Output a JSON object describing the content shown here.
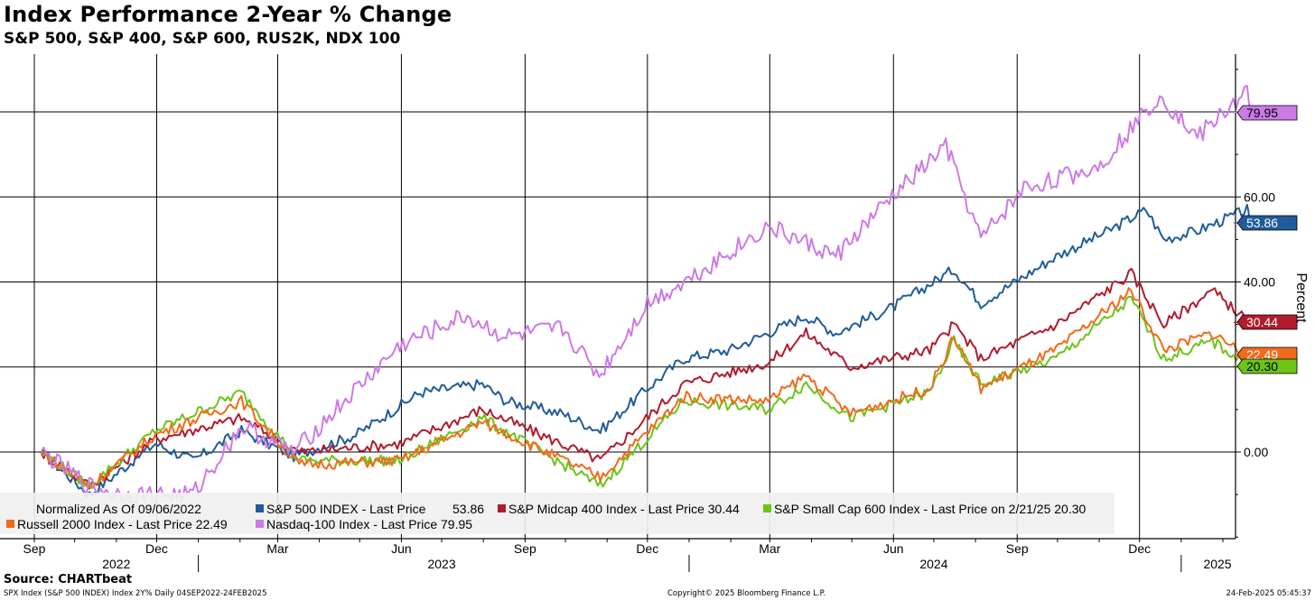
{
  "title": "Index Performance 2-Year % Change",
  "subtitle": "S&P 500, S&P 400, S&P 600, RUS2K, NDX 100",
  "source": "Source: CHARTbeat",
  "footer": {
    "left": "SPX Index (S&P 500 INDEX) Index 2Y%  Daily 04SEP2022-24FEB2025",
    "center": "Copyright© 2025 Bloomberg Finance L.P.",
    "right": "24-Feb-2025 05:45:37"
  },
  "chart_data": {
    "type": "line",
    "ylabel": "Percent",
    "ylim": [
      -20,
      95
    ],
    "yticks": [
      0,
      40,
      60
    ],
    "ytick_labels": [
      "0.00",
      "40.00",
      "60.00"
    ],
    "gridlines_y": [
      0,
      20,
      40,
      60,
      80
    ],
    "grid": true,
    "x_months": [
      "Sep",
      "Dec",
      "Mar",
      "Jun",
      "Sep",
      "Dec",
      "Mar",
      "Jun",
      "Sep",
      "Dec"
    ],
    "x_years": [
      "2022",
      "2023",
      "2024",
      "2025"
    ],
    "legend_note": "Normalized As Of 09/06/2022",
    "series": [
      {
        "name": "S&P 500 INDEX - Last Price",
        "legend_value": "53.86",
        "last_label": "53.86",
        "color": "#1f5c99",
        "x": [
          "2022-09-06",
          "2022-10-12",
          "2022-11-30",
          "2022-12-28",
          "2023-02-02",
          "2023-03-13",
          "2023-04-28",
          "2023-06-15",
          "2023-07-31",
          "2023-08-18",
          "2023-09-29",
          "2023-10-27",
          "2023-12-01",
          "2023-12-28",
          "2024-01-31",
          "2024-03-28",
          "2024-04-19",
          "2024-05-31",
          "2024-07-16",
          "2024-08-05",
          "2024-09-30",
          "2024-11-08",
          "2024-12-06",
          "2024-12-19",
          "2025-01-13",
          "2025-02-19",
          "2025-02-21"
        ],
        "y": [
          0,
          -10,
          2,
          -2,
          5,
          -1,
          4,
          14,
          16,
          12,
          9,
          5,
          15,
          22,
          24,
          32,
          28,
          34,
          43,
          35,
          46,
          52,
          57,
          50,
          52,
          57,
          53.86
        ]
      },
      {
        "name": "S&P Midcap 400 Index - Last Price",
        "legend_value": "30.44",
        "last_label": "30.44",
        "color": "#b01c2e",
        "x": [
          "2022-09-06",
          "2022-10-12",
          "2022-11-30",
          "2023-02-02",
          "2023-03-17",
          "2023-05-31",
          "2023-07-31",
          "2023-10-27",
          "2023-12-28",
          "2024-02-29",
          "2024-03-28",
          "2024-04-30",
          "2024-06-28",
          "2024-07-16",
          "2024-08-05",
          "2024-09-30",
          "2024-11-25",
          "2024-12-19",
          "2025-01-24",
          "2025-02-21"
        ],
        "y": [
          0,
          -8,
          3,
          8,
          0,
          2,
          10,
          -2,
          16,
          21,
          28,
          20,
          24,
          30,
          22,
          30,
          42,
          30,
          38,
          30.44
        ]
      },
      {
        "name": "S&P Small Cap 600 Index - Last Price on 2/21/25",
        "legend_value": "20.30",
        "last_label": "20.30",
        "color": "#6cc417",
        "x": [
          "2022-09-06",
          "2022-10-12",
          "2022-11-30",
          "2023-02-02",
          "2023-03-17",
          "2023-05-31",
          "2023-07-31",
          "2023-10-27",
          "2023-12-28",
          "2024-02-29",
          "2024-03-28",
          "2024-04-30",
          "2024-06-28",
          "2024-07-16",
          "2024-08-05",
          "2024-09-30",
          "2024-11-25",
          "2024-12-19",
          "2025-01-24",
          "2025-02-21"
        ],
        "y": [
          0,
          -8,
          5,
          14,
          -2,
          -2,
          8,
          -8,
          12,
          10,
          16,
          8,
          14,
          26,
          16,
          22,
          36,
          22,
          26,
          20.3
        ]
      },
      {
        "name": "Russell 2000 Index - Last Price",
        "legend_value": "22.49",
        "last_label": "22.49",
        "color": "#f26a1b",
        "x": [
          "2022-09-06",
          "2022-10-12",
          "2022-11-30",
          "2023-02-02",
          "2023-03-17",
          "2023-05-31",
          "2023-07-31",
          "2023-10-27",
          "2023-12-28",
          "2024-02-29",
          "2024-03-28",
          "2024-04-30",
          "2024-06-28",
          "2024-07-16",
          "2024-08-05",
          "2024-09-30",
          "2024-11-25",
          "2024-12-19",
          "2025-01-24",
          "2025-02-21"
        ],
        "y": [
          0,
          -8,
          4,
          12,
          -3,
          -2,
          7,
          -6,
          13,
          12,
          18,
          9,
          15,
          27,
          15,
          24,
          38,
          24,
          28,
          22.49
        ]
      },
      {
        "name": "Nasdaq-100 Index - Last Price",
        "legend_value": "79.95",
        "last_label": "79.95",
        "color": "#cc7ae6",
        "x": [
          "2022-09-06",
          "2022-10-12",
          "2022-11-04",
          "2022-12-28",
          "2023-02-02",
          "2023-03-13",
          "2023-05-31",
          "2023-07-18",
          "2023-08-18",
          "2023-09-29",
          "2023-10-26",
          "2023-12-01",
          "2023-12-28",
          "2024-02-29",
          "2024-04-19",
          "2024-05-31",
          "2024-07-10",
          "2024-08-05",
          "2024-09-06",
          "2024-10-31",
          "2024-12-16",
          "2025-01-13",
          "2025-02-19",
          "2025-02-21"
        ],
        "y": [
          0,
          -8,
          -10,
          -10,
          6,
          0,
          25,
          32,
          27,
          29,
          18,
          35,
          40,
          53,
          46,
          60,
          72,
          50,
          62,
          67,
          84,
          74,
          85,
          79.95
        ]
      }
    ]
  }
}
